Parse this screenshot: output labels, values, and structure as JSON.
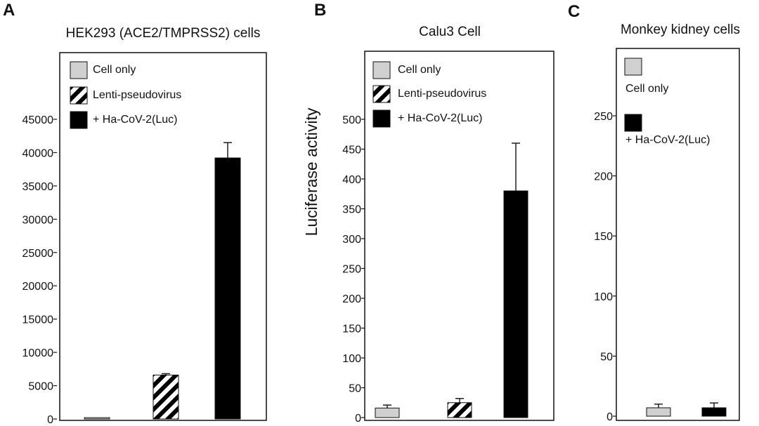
{
  "colors": {
    "cell_only": "#d0d0d0",
    "lenti": "#ffffff",
    "hacov": "#000000",
    "axis": "#111111"
  },
  "chart_data": [
    {
      "panel": "A",
      "type": "bar",
      "title": "HEK293 (ACE2/TMPRSS2) cells",
      "ylabel": "",
      "ylim": [
        0,
        45000
      ],
      "yticks": [
        0,
        5000,
        10000,
        15000,
        20000,
        25000,
        30000,
        35000,
        40000,
        45000
      ],
      "legend": [
        "Cell only",
        "Lenti-pseudovirus",
        "+ Ha-CoV-2(Luc)"
      ],
      "legend_position": "top",
      "series": [
        {
          "name": "Cell only",
          "value": 200,
          "error": 0
        },
        {
          "name": "Lenti-pseudovirus",
          "value": 6600,
          "error": 200
        },
        {
          "name": "+ Ha-CoV-2(Luc)",
          "value": 39200,
          "error": 2300
        }
      ]
    },
    {
      "panel": "B",
      "type": "bar",
      "title": "Calu3 Cell",
      "ylabel": "Luciferase activity",
      "ylim": [
        0,
        500
      ],
      "yticks": [
        0,
        50,
        100,
        150,
        200,
        250,
        300,
        350,
        400,
        450,
        500
      ],
      "legend": [
        "Cell only",
        "Lenti-pseudovirus",
        "+ Ha-CoV-2(Luc)"
      ],
      "legend_position": "top",
      "series": [
        {
          "name": "Cell only",
          "value": 16,
          "error": 5
        },
        {
          "name": "Lenti-pseudovirus",
          "value": 25,
          "error": 7
        },
        {
          "name": "+ Ha-CoV-2(Luc)",
          "value": 380,
          "error": 80
        }
      ]
    },
    {
      "panel": "C",
      "type": "bar",
      "title": "Monkey kidney cells",
      "ylabel": "",
      "ylim": [
        0,
        250
      ],
      "yticks": [
        0,
        50,
        100,
        150,
        200,
        250
      ],
      "legend": [
        "Cell only",
        "+ Ha-CoV-2(Luc)"
      ],
      "legend_position": "top",
      "series": [
        {
          "name": "Cell only",
          "value": 7,
          "error": 3
        },
        {
          "name": "+ Ha-CoV-2(Luc)",
          "value": 7,
          "error": 4
        }
      ]
    }
  ]
}
